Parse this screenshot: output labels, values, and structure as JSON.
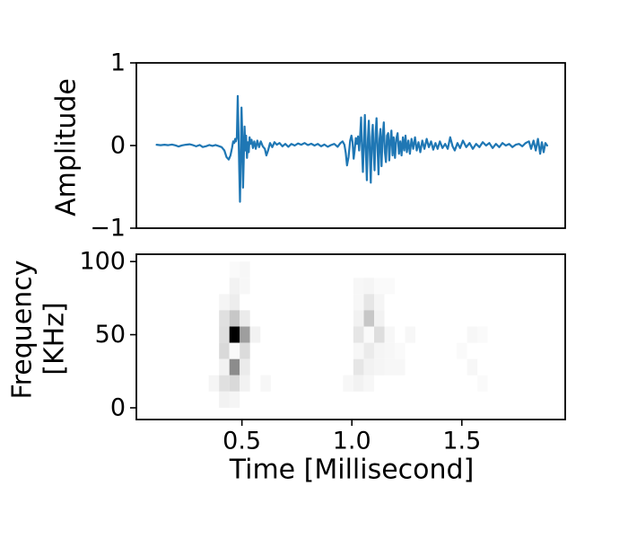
{
  "figure": {
    "background": "#ffffff",
    "text_color": "#000000"
  },
  "chart_data": [
    {
      "type": "line",
      "name": "waveform",
      "title": "",
      "ylabel": "Amplitude",
      "xlabel": "",
      "xlim": [
        0.02,
        1.97
      ],
      "ylim": [
        -1,
        1
      ],
      "yticks": {
        "values": [
          1,
          0,
          -1
        ],
        "labels": [
          "1",
          "0",
          "−1"
        ]
      },
      "xticks": {
        "values": [],
        "labels": []
      },
      "grid": false,
      "line_color": "#1f77b4",
      "points": [
        [
          0.112,
          0.01
        ],
        [
          0.13,
          0.004
        ],
        [
          0.148,
          0.01
        ],
        [
          0.165,
          0.004
        ],
        [
          0.182,
          0.012
        ],
        [
          0.198,
          0.002
        ],
        [
          0.212,
          -0.012
        ],
        [
          0.228,
          0.002
        ],
        [
          0.245,
          0.01
        ],
        [
          0.262,
          0.015
        ],
        [
          0.278,
          0.004
        ],
        [
          0.292,
          -0.01
        ],
        [
          0.308,
          0.006
        ],
        [
          0.322,
          -0.018
        ],
        [
          0.338,
          -0.008
        ],
        [
          0.352,
          0.006
        ],
        [
          0.366,
          -0.004
        ],
        [
          0.38,
          0.006
        ],
        [
          0.394,
          -0.006
        ],
        [
          0.408,
          -0.02
        ],
        [
          0.42,
          -0.06
        ],
        [
          0.43,
          -0.14
        ],
        [
          0.44,
          -0.17
        ],
        [
          0.448,
          -0.12
        ],
        [
          0.455,
          -0.03
        ],
        [
          0.46,
          0.05
        ],
        [
          0.465,
          0.03
        ],
        [
          0.469,
          0.08
        ],
        [
          0.473,
          0.05
        ],
        [
          0.477,
          0.1
        ],
        [
          0.481,
          0.6
        ],
        [
          0.485,
          0.08
        ],
        [
          0.488,
          -0.3
        ],
        [
          0.491,
          -0.68
        ],
        [
          0.495,
          -0.15
        ],
        [
          0.498,
          0.46
        ],
        [
          0.502,
          0.08
        ],
        [
          0.505,
          -0.51
        ],
        [
          0.509,
          -0.08
        ],
        [
          0.512,
          0.23
        ],
        [
          0.516,
          -0.06
        ],
        [
          0.519,
          0.12
        ],
        [
          0.523,
          -0.15
        ],
        [
          0.527,
          0.04
        ],
        [
          0.531,
          -0.08
        ],
        [
          0.535,
          0.1
        ],
        [
          0.539,
          0.02
        ],
        [
          0.544,
          0.07
        ],
        [
          0.55,
          -0.03
        ],
        [
          0.556,
          0.05
        ],
        [
          0.563,
          -0.04
        ],
        [
          0.57,
          0.06
        ],
        [
          0.578,
          -0.02
        ],
        [
          0.586,
          0.05
        ],
        [
          0.595,
          -0.01
        ],
        [
          0.604,
          -0.04
        ],
        [
          0.611,
          -0.12
        ],
        [
          0.619,
          -0.06
        ],
        [
          0.628,
          0.03
        ],
        [
          0.638,
          -0.02
        ],
        [
          0.648,
          0.04
        ],
        [
          0.659,
          0.01
        ],
        [
          0.671,
          0.03
        ],
        [
          0.684,
          -0.01
        ],
        [
          0.697,
          0.02
        ],
        [
          0.711,
          -0.015
        ],
        [
          0.725,
          0.02
        ],
        [
          0.74,
          0.0
        ],
        [
          0.755,
          0.025
        ],
        [
          0.77,
          0.01
        ],
        [
          0.785,
          0.03
        ],
        [
          0.8,
          0.005
        ],
        [
          0.815,
          0.022
        ],
        [
          0.83,
          0.0
        ],
        [
          0.845,
          0.02
        ],
        [
          0.86,
          -0.01
        ],
        [
          0.875,
          0.012
        ],
        [
          0.89,
          -0.015
        ],
        [
          0.905,
          0.005
        ],
        [
          0.92,
          0.02
        ],
        [
          0.935,
          -0.015
        ],
        [
          0.948,
          0.03
        ],
        [
          0.958,
          0.05
        ],
        [
          0.966,
          0.01
        ],
        [
          0.972,
          -0.09
        ],
        [
          0.978,
          -0.24
        ],
        [
          0.985,
          -0.14
        ],
        [
          0.992,
          0.06
        ],
        [
          0.998,
          0.12
        ],
        [
          1.003,
          0.04
        ],
        [
          1.008,
          -0.16
        ],
        [
          1.013,
          -0.05
        ],
        [
          1.018,
          0.09
        ],
        [
          1.023,
          0.02
        ],
        [
          1.028,
          0.11
        ],
        [
          1.033,
          -0.06
        ],
        [
          1.038,
          0.13
        ],
        [
          1.042,
          0.34
        ],
        [
          1.046,
          -0.06
        ],
        [
          1.05,
          -0.32
        ],
        [
          1.055,
          0.06
        ],
        [
          1.059,
          0.37
        ],
        [
          1.064,
          -0.1
        ],
        [
          1.068,
          -0.42
        ],
        [
          1.073,
          0.08
        ],
        [
          1.077,
          0.3
        ],
        [
          1.082,
          -0.12
        ],
        [
          1.086,
          -0.45
        ],
        [
          1.091,
          0.1
        ],
        [
          1.095,
          0.25
        ],
        [
          1.099,
          -0.08
        ],
        [
          1.103,
          -0.3
        ],
        [
          1.108,
          0.15
        ],
        [
          1.112,
          0.33
        ],
        [
          1.117,
          -0.05
        ],
        [
          1.121,
          -0.35
        ],
        [
          1.126,
          0.08
        ],
        [
          1.13,
          0.2
        ],
        [
          1.135,
          -0.25
        ],
        [
          1.14,
          0.1
        ],
        [
          1.145,
          0.28
        ],
        [
          1.15,
          -0.08
        ],
        [
          1.155,
          -0.2
        ],
        [
          1.16,
          0.12
        ],
        [
          1.165,
          0.15
        ],
        [
          1.17,
          -0.18
        ],
        [
          1.175,
          0.05
        ],
        [
          1.18,
          0.18
        ],
        [
          1.185,
          -0.12
        ],
        [
          1.19,
          0.1
        ],
        [
          1.196,
          -0.15
        ],
        [
          1.202,
          0.08
        ],
        [
          1.208,
          0.15
        ],
        [
          1.214,
          -0.1
        ],
        [
          1.22,
          0.05
        ],
        [
          1.226,
          -0.12
        ],
        [
          1.232,
          0.1
        ],
        [
          1.238,
          -0.06
        ],
        [
          1.244,
          0.12
        ],
        [
          1.25,
          -0.08
        ],
        [
          1.257,
          0.06
        ],
        [
          1.264,
          -0.1
        ],
        [
          1.271,
          0.08
        ],
        [
          1.279,
          -0.04
        ],
        [
          1.287,
          0.1
        ],
        [
          1.295,
          -0.06
        ],
        [
          1.303,
          0.04
        ],
        [
          1.311,
          -0.08
        ],
        [
          1.32,
          0.06
        ],
        [
          1.33,
          -0.04
        ],
        [
          1.34,
          0.08
        ],
        [
          1.35,
          -0.02
        ],
        [
          1.36,
          0.05
        ],
        [
          1.37,
          -0.05
        ],
        [
          1.38,
          0.03
        ],
        [
          1.39,
          -0.04
        ],
        [
          1.4,
          0.05
        ],
        [
          1.412,
          -0.03
        ],
        [
          1.424,
          0.02
        ],
        [
          1.436,
          -0.04
        ],
        [
          1.447,
          0.1
        ],
        [
          1.458,
          -0.01
        ],
        [
          1.468,
          -0.06
        ],
        [
          1.48,
          0.03
        ],
        [
          1.492,
          -0.03
        ],
        [
          1.505,
          0.06
        ],
        [
          1.52,
          -0.02
        ],
        [
          1.535,
          0.03
        ],
        [
          1.55,
          -0.04
        ],
        [
          1.565,
          0.02
        ],
        [
          1.58,
          -0.02
        ],
        [
          1.595,
          0.04
        ],
        [
          1.61,
          0.0
        ],
        [
          1.625,
          0.03
        ],
        [
          1.64,
          -0.03
        ],
        [
          1.655,
          0.02
        ],
        [
          1.67,
          -0.02
        ],
        [
          1.685,
          0.03
        ],
        [
          1.7,
          0.0
        ],
        [
          1.715,
          0.02
        ],
        [
          1.73,
          -0.02
        ],
        [
          1.745,
          0.01
        ],
        [
          1.76,
          0.02
        ],
        [
          1.775,
          -0.01
        ],
        [
          1.79,
          0.03
        ],
        [
          1.805,
          0.05
        ],
        [
          1.815,
          -0.04
        ],
        [
          1.826,
          0.06
        ],
        [
          1.836,
          -0.06
        ],
        [
          1.846,
          0.08
        ],
        [
          1.856,
          -0.1
        ],
        [
          1.864,
          0.04
        ],
        [
          1.872,
          -0.08
        ],
        [
          1.88,
          0.03
        ],
        [
          1.888,
          0.0
        ]
      ]
    },
    {
      "type": "heatmap",
      "name": "spectrogram",
      "title": "",
      "ylabel_lines": [
        "Frequency",
        "[KHz]"
      ],
      "xlabel": "Time [Millisecond]",
      "xlim": [
        0.02,
        1.97
      ],
      "ylim": [
        -8,
        105
      ],
      "yticks": {
        "values": [
          100,
          50,
          0
        ],
        "labels": [
          "100",
          "50",
          "0"
        ]
      },
      "xticks": {
        "values": [
          0.5,
          1.0,
          1.5
        ],
        "labels": [
          "0.5",
          "1.0",
          "1.5"
        ]
      },
      "grid": false,
      "colormap": "Greys",
      "cell_width_ms": 0.047,
      "cell_height_khz": 11.11,
      "cells": [
        [
          0.49,
          94.4,
          0.03
        ],
        [
          0.443,
          94.4,
          0.02
        ],
        [
          0.443,
          83.3,
          0.05
        ],
        [
          0.49,
          83.3,
          0.03
        ],
        [
          0.396,
          72.2,
          0.04
        ],
        [
          0.443,
          72.2,
          0.07
        ],
        [
          0.396,
          61.1,
          0.12
        ],
        [
          0.443,
          61.1,
          0.22
        ],
        [
          0.49,
          61.1,
          0.08
        ],
        [
          0.396,
          50.0,
          0.13
        ],
        [
          0.443,
          50.0,
          1.0
        ],
        [
          0.49,
          50.0,
          0.38
        ],
        [
          0.537,
          50.0,
          0.05
        ],
        [
          0.396,
          38.9,
          0.15
        ],
        [
          0.443,
          38.9,
          0.02
        ],
        [
          0.49,
          38.9,
          0.14
        ],
        [
          0.396,
          27.8,
          0.05
        ],
        [
          0.443,
          27.8,
          0.45
        ],
        [
          0.49,
          27.8,
          0.08
        ],
        [
          0.349,
          16.7,
          0.04
        ],
        [
          0.396,
          16.7,
          0.12
        ],
        [
          0.443,
          16.7,
          0.15
        ],
        [
          0.49,
          16.7,
          0.05
        ],
        [
          0.584,
          16.7,
          0.03
        ],
        [
          0.396,
          5.6,
          0.05
        ],
        [
          0.443,
          5.6,
          0.04
        ],
        [
          1.007,
          83.3,
          0.03
        ],
        [
          1.054,
          83.3,
          0.04
        ],
        [
          1.101,
          83.3,
          0.02
        ],
        [
          1.148,
          83.3,
          0.02
        ],
        [
          1.007,
          72.2,
          0.03
        ],
        [
          1.054,
          72.2,
          0.1
        ],
        [
          1.101,
          72.2,
          0.04
        ],
        [
          1.007,
          61.1,
          0.05
        ],
        [
          1.054,
          61.1,
          0.22
        ],
        [
          1.101,
          61.1,
          0.05
        ],
        [
          1.007,
          50.0,
          0.1
        ],
        [
          1.054,
          50.0,
          0.02
        ],
        [
          1.101,
          50.0,
          0.13
        ],
        [
          1.148,
          50.0,
          0.03
        ],
        [
          1.242,
          50.0,
          0.03
        ],
        [
          1.524,
          50.0,
          0.03
        ],
        [
          1.571,
          50.0,
          0.02
        ],
        [
          1.007,
          38.9,
          0.03
        ],
        [
          1.054,
          38.9,
          0.08
        ],
        [
          1.101,
          38.9,
          0.04
        ],
        [
          1.148,
          38.9,
          0.03
        ],
        [
          1.195,
          38.9,
          0.02
        ],
        [
          1.476,
          38.9,
          0.02
        ],
        [
          1.007,
          27.8,
          0.1
        ],
        [
          1.054,
          27.8,
          0.05
        ],
        [
          1.101,
          27.8,
          0.04
        ],
        [
          1.148,
          27.8,
          0.03
        ],
        [
          1.195,
          27.8,
          0.03
        ],
        [
          1.524,
          27.8,
          0.03
        ],
        [
          0.96,
          16.7,
          0.03
        ],
        [
          1.007,
          16.7,
          0.05
        ],
        [
          1.054,
          16.7,
          0.03
        ],
        [
          1.571,
          16.7,
          0.02
        ]
      ]
    }
  ]
}
